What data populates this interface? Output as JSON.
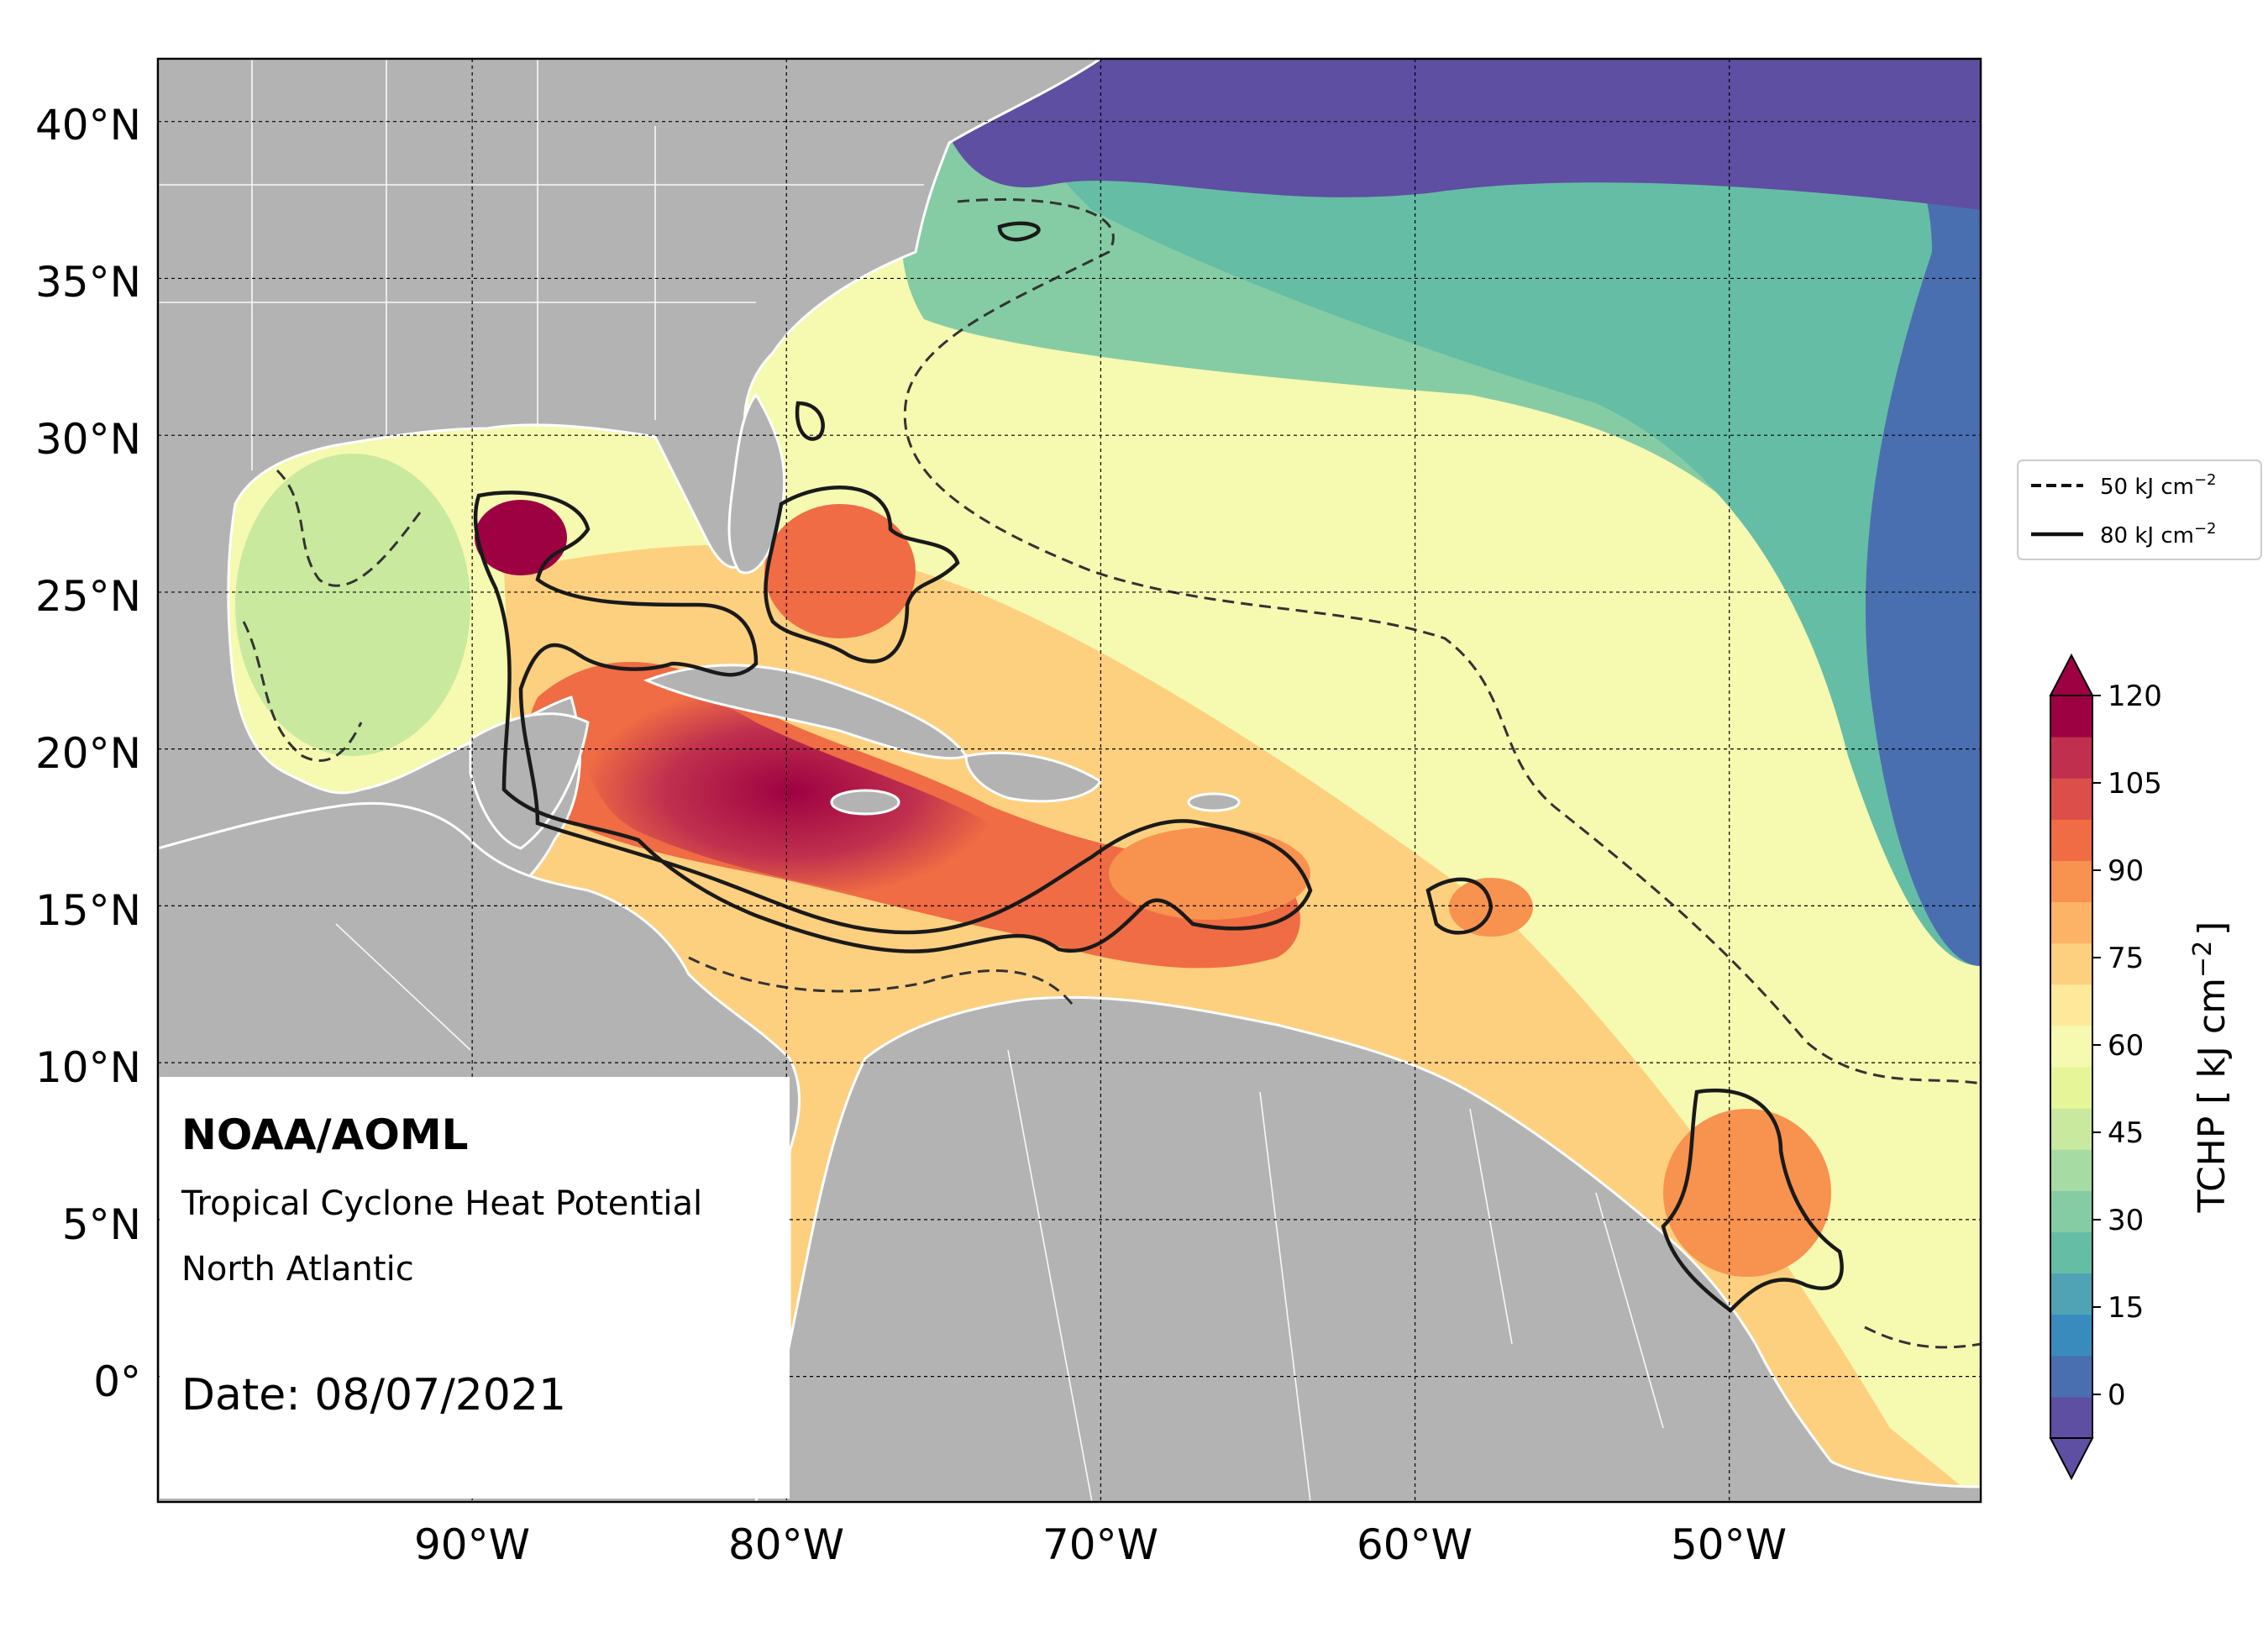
{
  "map": {
    "lat_labels": [
      "40°N",
      "35°N",
      "30°N",
      "25°N",
      "20°N",
      "15°N",
      "10°N",
      "5°N",
      "0°"
    ],
    "lon_labels": [
      "90°W",
      "80°W",
      "70°W",
      "60°W",
      "50°W"
    ],
    "lat_range": [
      -4,
      42
    ],
    "lon_range": [
      -100,
      -42
    ],
    "graticule_lats": [
      40,
      35,
      30,
      25,
      20,
      15,
      10,
      5,
      0
    ],
    "graticule_lons": [
      -90,
      -80,
      -70,
      -60,
      -50
    ]
  },
  "info_box": {
    "org": "NOAA/AOML",
    "product": "Tropical Cyclone Heat Potential",
    "region": "North Atlantic",
    "date": "Date: 08/07/2021"
  },
  "legend": {
    "dashed_label": "50 kJ cm",
    "solid_label": "80 kJ cm",
    "exponent": "−2"
  },
  "colorbar": {
    "label": "TCHP [ kJ cm",
    "label_exp": "−2",
    "label_close": "]",
    "tick_labels": [
      "120",
      "105",
      "90",
      "75",
      "60",
      "45",
      "30",
      "15",
      "0"
    ],
    "range": [
      -7.5,
      120
    ],
    "colors": [
      "#5e4fa2",
      "#4a6fb0",
      "#3a8bbd",
      "#4fa3b5",
      "#66bda5",
      "#85cca4",
      "#a6dba4",
      "#c9e99e",
      "#e6f598",
      "#f6f9b0",
      "#fee99a",
      "#fdd080",
      "#fdb366",
      "#f8924f",
      "#ef6c44",
      "#dc4e4a",
      "#c0304e",
      "#9e0142"
    ]
  }
}
